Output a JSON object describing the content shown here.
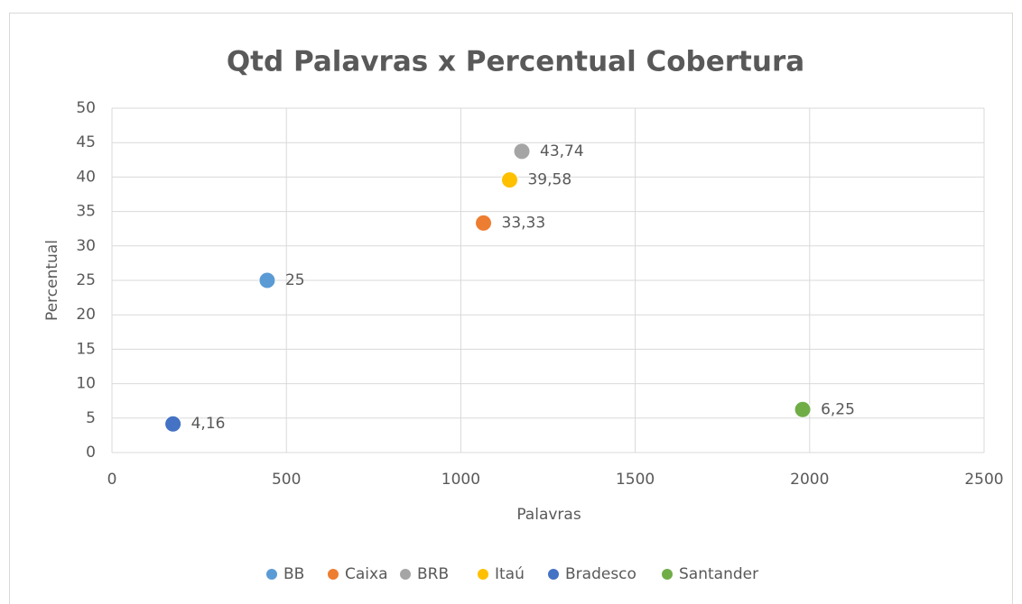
{
  "chart_data": {
    "type": "scatter",
    "title": "Qtd Palavras x Percentual Cobertura",
    "xlabel": "Palavras",
    "ylabel": "Percentual",
    "xlim": [
      0,
      2500
    ],
    "xticks": [
      0,
      500,
      1000,
      1500,
      2000,
      2500
    ],
    "ylim": [
      0,
      50
    ],
    "yticks": [
      0,
      5,
      10,
      15,
      20,
      25,
      30,
      35,
      40,
      45,
      50
    ],
    "grid": true,
    "legend": "bottom",
    "series": [
      {
        "name": "BB",
        "color": "#5b9bd5",
        "x": [
          445
        ],
        "values": [
          25
        ]
      },
      {
        "name": "Caixa",
        "color": "#ed7d31",
        "x": [
          1065
        ],
        "values": [
          33.33
        ],
        "value_labels": [
          "33,33"
        ]
      },
      {
        "name": "BRB",
        "color": "#a5a5a5",
        "x": [
          1175
        ],
        "values": [
          43.74
        ],
        "value_labels": [
          "43,74"
        ]
      },
      {
        "name": "Itaú",
        "color": "#ffc000",
        "x": [
          1140
        ],
        "values": [
          39.58
        ],
        "value_labels": [
          "39,58"
        ]
      },
      {
        "name": "Bradesco",
        "color": "#4472c4",
        "x": [
          175
        ],
        "values": [
          4.16
        ],
        "value_labels": [
          "4,16"
        ]
      },
      {
        "name": "Santander",
        "color": "#70ad47",
        "x": [
          1980
        ],
        "values": [
          6.25
        ],
        "value_labels": [
          "6,25"
        ]
      }
    ]
  }
}
